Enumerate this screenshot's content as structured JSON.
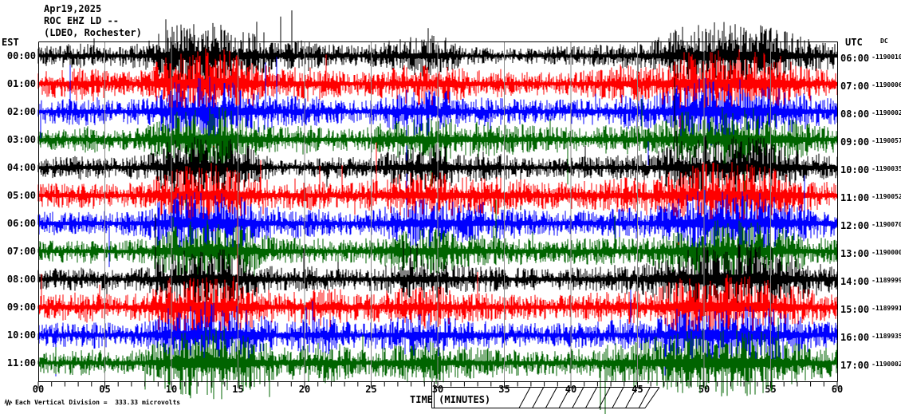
{
  "header": {
    "date": "Apr19,2025",
    "station_line": "ROC EHZ LD --",
    "location_line": "(LDEO, Rochester)"
  },
  "axis": {
    "left_header": "EST",
    "right_header": "UTC",
    "right_subheader": "DC",
    "xlabel": "TIME (MINUTES)",
    "x_tick_labels": [
      "00",
      "05",
      "10",
      "15",
      "20",
      "25",
      "30",
      "35",
      "40",
      "45",
      "50",
      "55",
      "60"
    ],
    "scale_note": "Each Vertical Division =  333.33 microvolts"
  },
  "chart_data": {
    "type": "line",
    "subtype": "helicorder-seismogram",
    "title": "ROC EHZ LD -- (LDEO, Rochester) Apr19,2025",
    "xlabel": "TIME (MINUTES)",
    "x_range_minutes": [
      0,
      60
    ],
    "minutes_per_row": 60,
    "division_microvolts": 333.33,
    "grid": "vertical lines every 5 minutes",
    "trace_color_cycle": [
      "#000000",
      "#ff0000",
      "#0000ff",
      "#006400"
    ],
    "envelope_note": "relative amplitude sampled every 2 minutes (0-60 min), 1.0 = typical background noise",
    "rows": [
      {
        "est": "00:00",
        "utc": "06:00",
        "dc": "-1190010",
        "color": "#000000",
        "envelope": [
          0.9,
          1.0,
          1.1,
          0.9,
          1.2,
          2.6,
          3.0,
          2.9,
          2.0,
          1.1,
          1.4,
          1.0,
          0.9,
          1.2,
          1.7,
          1.9,
          0.8,
          0.7,
          0.7,
          0.8,
          0.9,
          1.0,
          1.1,
          1.3,
          2.4,
          3.0,
          2.9,
          2.8,
          2.3,
          1.4,
          1.1
        ]
      },
      {
        "est": "01:00",
        "utc": "07:00",
        "dc": "-1190006",
        "color": "#ff0000",
        "envelope": [
          1.0,
          1.4,
          1.6,
          1.0,
          1.3,
          2.8,
          3.2,
          3.0,
          2.2,
          1.2,
          1.6,
          1.2,
          1.0,
          1.3,
          1.8,
          2.0,
          1.3,
          1.2,
          1.1,
          1.0,
          1.1,
          1.3,
          1.8,
          1.5,
          2.6,
          3.2,
          3.0,
          2.9,
          2.4,
          1.5,
          1.2
        ]
      },
      {
        "est": "02:00",
        "utc": "08:00",
        "dc": "-1190002",
        "color": "#0000ff",
        "envelope": [
          1.0,
          1.1,
          1.3,
          1.0,
          1.2,
          2.6,
          3.1,
          3.0,
          2.1,
          1.2,
          1.5,
          1.1,
          1.0,
          1.4,
          2.0,
          2.1,
          1.4,
          1.2,
          1.1,
          1.0,
          1.1,
          1.2,
          1.5,
          1.4,
          2.5,
          3.0,
          2.9,
          2.8,
          2.2,
          1.4,
          1.1
        ]
      },
      {
        "est": "03:00",
        "utc": "09:00",
        "dc": "-1190057",
        "color": "#006400",
        "envelope": [
          0.9,
          1.0,
          1.2,
          0.9,
          1.1,
          2.4,
          2.9,
          2.8,
          1.9,
          1.1,
          1.3,
          1.0,
          1.0,
          1.5,
          1.9,
          2.0,
          1.6,
          1.5,
          1.4,
          1.2,
          1.1,
          1.2,
          1.3,
          1.3,
          2.3,
          2.8,
          2.8,
          2.7,
          2.1,
          1.4,
          1.1
        ]
      },
      {
        "est": "04:00",
        "utc": "10:00",
        "dc": "-1190035",
        "color": "#000000",
        "envelope": [
          0.9,
          1.0,
          1.1,
          0.9,
          1.1,
          2.4,
          2.8,
          2.7,
          1.8,
          0.6,
          0.8,
          1.0,
          0.9,
          1.3,
          1.8,
          2.2,
          1.2,
          1.5,
          0.9,
          0.8,
          0.9,
          1.0,
          1.1,
          1.2,
          2.2,
          2.8,
          2.8,
          2.7,
          2.1,
          1.3,
          1.0
        ]
      },
      {
        "est": "05:00",
        "utc": "11:00",
        "dc": "-1190052",
        "color": "#ff0000",
        "envelope": [
          1.0,
          1.1,
          1.2,
          1.0,
          1.2,
          2.5,
          2.9,
          2.8,
          1.9,
          1.1,
          1.4,
          1.1,
          1.1,
          1.6,
          2.0,
          2.1,
          1.7,
          1.8,
          1.5,
          1.2,
          1.2,
          1.3,
          1.6,
          1.4,
          2.5,
          3.0,
          2.9,
          2.8,
          2.2,
          1.4,
          1.1
        ]
      },
      {
        "est": "06:00",
        "utc": "12:00",
        "dc": "-1190070",
        "color": "#0000ff",
        "envelope": [
          1.0,
          1.1,
          1.2,
          1.0,
          1.2,
          2.5,
          3.0,
          2.8,
          1.9,
          1.1,
          1.4,
          1.1,
          1.0,
          1.5,
          2.1,
          2.2,
          1.8,
          1.6,
          1.3,
          1.1,
          1.1,
          1.2,
          1.4,
          1.3,
          2.4,
          2.9,
          2.8,
          2.7,
          2.1,
          1.4,
          1.1
        ]
      },
      {
        "est": "07:00",
        "utc": "13:00",
        "dc": "-1190000",
        "color": "#006400",
        "envelope": [
          0.9,
          1.0,
          1.1,
          0.9,
          1.1,
          2.3,
          2.8,
          2.9,
          2.0,
          1.1,
          1.3,
          1.0,
          1.0,
          1.4,
          1.9,
          2.0,
          1.5,
          1.4,
          1.2,
          1.1,
          1.1,
          1.2,
          1.3,
          1.2,
          2.2,
          2.8,
          2.7,
          2.6,
          2.0,
          1.3,
          1.0
        ]
      },
      {
        "est": "08:00",
        "utc": "14:00",
        "dc": "-1189999",
        "color": "#000000",
        "envelope": [
          0.9,
          1.0,
          1.1,
          0.9,
          1.1,
          2.3,
          2.8,
          2.7,
          1.8,
          1.0,
          1.2,
          1.0,
          0.9,
          1.2,
          1.7,
          1.8,
          1.2,
          1.1,
          1.0,
          1.0,
          1.0,
          1.1,
          1.3,
          1.6,
          2.6,
          3.2,
          3.1,
          3.0,
          2.4,
          1.5,
          1.1
        ]
      },
      {
        "est": "09:00",
        "utc": "15:00",
        "dc": "-1189991",
        "color": "#ff0000",
        "envelope": [
          1.0,
          1.2,
          1.4,
          1.0,
          1.3,
          2.7,
          3.1,
          3.0,
          2.1,
          1.2,
          1.6,
          1.8,
          1.1,
          1.4,
          1.8,
          1.9,
          1.3,
          1.2,
          1.1,
          1.1,
          1.1,
          1.3,
          1.5,
          1.4,
          2.6,
          3.1,
          3.0,
          2.8,
          2.3,
          1.5,
          1.1
        ]
      },
      {
        "est": "10:00",
        "utc": "16:00",
        "dc": "-1189935",
        "color": "#0000ff",
        "envelope": [
          1.0,
          1.1,
          1.2,
          1.0,
          1.2,
          2.5,
          3.0,
          2.9,
          2.0,
          1.2,
          1.5,
          1.7,
          1.0,
          1.3,
          1.8,
          1.9,
          1.3,
          1.2,
          1.1,
          1.0,
          1.1,
          1.2,
          1.4,
          1.3,
          2.4,
          2.9,
          2.8,
          2.7,
          2.1,
          1.4,
          1.1
        ]
      },
      {
        "est": "11:00",
        "utc": "17:00",
        "dc": "-1190002",
        "color": "#006400",
        "envelope": [
          0.9,
          1.0,
          1.2,
          1.0,
          1.2,
          2.6,
          3.3,
          3.2,
          2.4,
          1.3,
          1.6,
          1.9,
          1.1,
          1.4,
          1.8,
          1.9,
          1.4,
          1.3,
          1.2,
          1.1,
          1.2,
          1.4,
          2.0,
          2.2,
          2.6,
          3.0,
          2.9,
          2.8,
          2.2,
          1.5,
          1.2
        ]
      }
    ]
  }
}
